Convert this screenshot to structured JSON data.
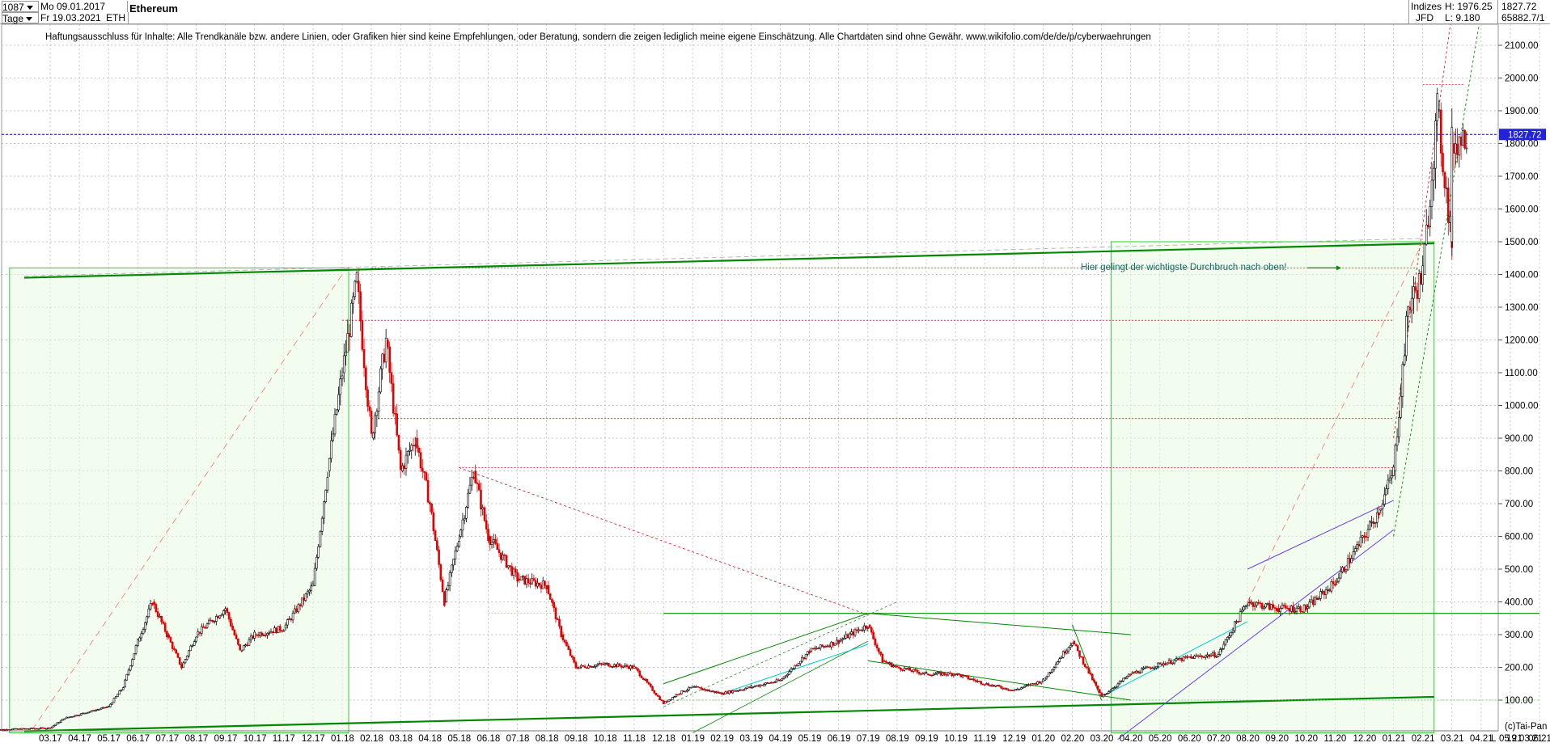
{
  "header": {
    "bar_count": "1087",
    "start_date": "Mo 09.01.2017",
    "period": "Tage",
    "end_date": "Fr 19.03.2021",
    "ticker": "ETH",
    "title": "Ethereum",
    "category": "Indizes",
    "high_label": "H: 1976.25",
    "last_value": "1827.72",
    "exchange": "JFD",
    "low_label": "L: 9.180",
    "volume_value": "65882.7/1"
  },
  "disclaimer": "Haftungsausschluss für Inhalte: Alle Trendkanäle bzw. andere Linien, oder Grafiken hier sind keine Empfehlungen, oder Beratung, sondern die zeigen lediglich meine eigene Einschätzung. Alle Chartdaten sind ohne Gewähr.  www.wikifolio.com/de/de/p/cyberwaehrungen",
  "annotation": "Hier gelingt der wichtigste Durchbruch nach oben!",
  "footer": {
    "credit": "(c)Tai-Pan",
    "last_date": "19.03.21",
    "scale_letter": "L"
  },
  "colors": {
    "up": "#000000",
    "down": "#e00000",
    "grid": "#b0b0b0",
    "green": "#008800",
    "red_dash": "#dd2222",
    "blue": "#0000dd",
    "purple": "#6a3df0",
    "fill": "#e8fbe4"
  },
  "chart_data": {
    "type": "candlestick",
    "title": "Ethereum",
    "ylim": [
      0,
      2200
    ],
    "y_ticks": [
      "100.00",
      "200.00",
      "300.00",
      "400.00",
      "500.00",
      "600.00",
      "700.00",
      "800.00",
      "900.00",
      "1000.00",
      "1100.00",
      "1200.00",
      "1300.00",
      "1400.00",
      "1500.00",
      "1600.00",
      "1700.00",
      "1800.00",
      "1900.00",
      "2000.00",
      "2100.00"
    ],
    "x_ticks": [
      "03.17",
      "04.17",
      "05.17",
      "06.17",
      "07.17",
      "08.17",
      "09.17",
      "10.17",
      "11.17",
      "12.17",
      "01.18",
      "02.18",
      "03.18",
      "04.18",
      "05.18",
      "06.18",
      "07.18",
      "08.18",
      "09.18",
      "10.18",
      "11.18",
      "12.18",
      "01.19",
      "02.19",
      "03.19",
      "04.19",
      "05.19",
      "06.19",
      "07.19",
      "08.19",
      "09.19",
      "10.19",
      "11.19",
      "12.19",
      "01.20",
      "02.20",
      "03.20",
      "04.20",
      "05.20",
      "06.20",
      "07.20",
      "08.20",
      "09.20",
      "10.20",
      "11.20",
      "12.20",
      "01.21",
      "02.21",
      "03.21",
      "04.21",
      "05.21",
      "06.21"
    ],
    "current_price": 1827.72,
    "price_path": [
      [
        "01.17",
        9
      ],
      [
        "03.17",
        15
      ],
      [
        "03.17",
        45
      ],
      [
        "05.17",
        80
      ],
      [
        "05.17",
        140
      ],
      [
        "06.17",
        280
      ],
      [
        "06.17",
        400
      ],
      [
        "07.17",
        300
      ],
      [
        "07.17",
        200
      ],
      [
        "08.17",
        300
      ],
      [
        "09.17",
        380
      ],
      [
        "09.17",
        250
      ],
      [
        "10.17",
        300
      ],
      [
        "11.17",
        320
      ],
      [
        "12.17",
        450
      ],
      [
        "12.17",
        800
      ],
      [
        "01.18",
        1100
      ],
      [
        "01.18",
        1380
      ],
      [
        "01.18",
        900
      ],
      [
        "02.18",
        1200
      ],
      [
        "02.18",
        800
      ],
      [
        "03.18",
        900
      ],
      [
        "03.18",
        700
      ],
      [
        "04.18",
        400
      ],
      [
        "05.18",
        600
      ],
      [
        "05.18",
        800
      ],
      [
        "06.18",
        600
      ],
      [
        "07.18",
        470
      ],
      [
        "08.18",
        450
      ],
      [
        "08.18",
        300
      ],
      [
        "09.18",
        200
      ],
      [
        "10.18",
        210
      ],
      [
        "11.18",
        200
      ],
      [
        "12.18",
        90
      ],
      [
        "12.18",
        120
      ],
      [
        "01.19",
        140
      ],
      [
        "02.19",
        120
      ],
      [
        "03.19",
        140
      ],
      [
        "04.19",
        160
      ],
      [
        "05.19",
        250
      ],
      [
        "06.19",
        280
      ],
      [
        "07.19",
        330
      ],
      [
        "07.19",
        220
      ],
      [
        "08.19",
        200
      ],
      [
        "09.19",
        180
      ],
      [
        "10.19",
        180
      ],
      [
        "11.19",
        150
      ],
      [
        "12.19",
        130
      ],
      [
        "01.20",
        160
      ],
      [
        "02.20",
        280
      ],
      [
        "03.20",
        110
      ],
      [
        "04.20",
        180
      ],
      [
        "05.20",
        210
      ],
      [
        "06.20",
        230
      ],
      [
        "07.20",
        240
      ],
      [
        "08.20",
        400
      ],
      [
        "09.20",
        380
      ],
      [
        "10.20",
        380
      ],
      [
        "11.20",
        460
      ],
      [
        "12.20",
        600
      ],
      [
        "12.20",
        680
      ],
      [
        "01.21",
        800
      ],
      [
        "01.21",
        1300
      ],
      [
        "02.21",
        1400
      ],
      [
        "02.21",
        1900
      ],
      [
        "02.21",
        1500
      ],
      [
        "03.21",
        1800
      ],
      [
        "03.21",
        1827.72
      ]
    ]
  }
}
